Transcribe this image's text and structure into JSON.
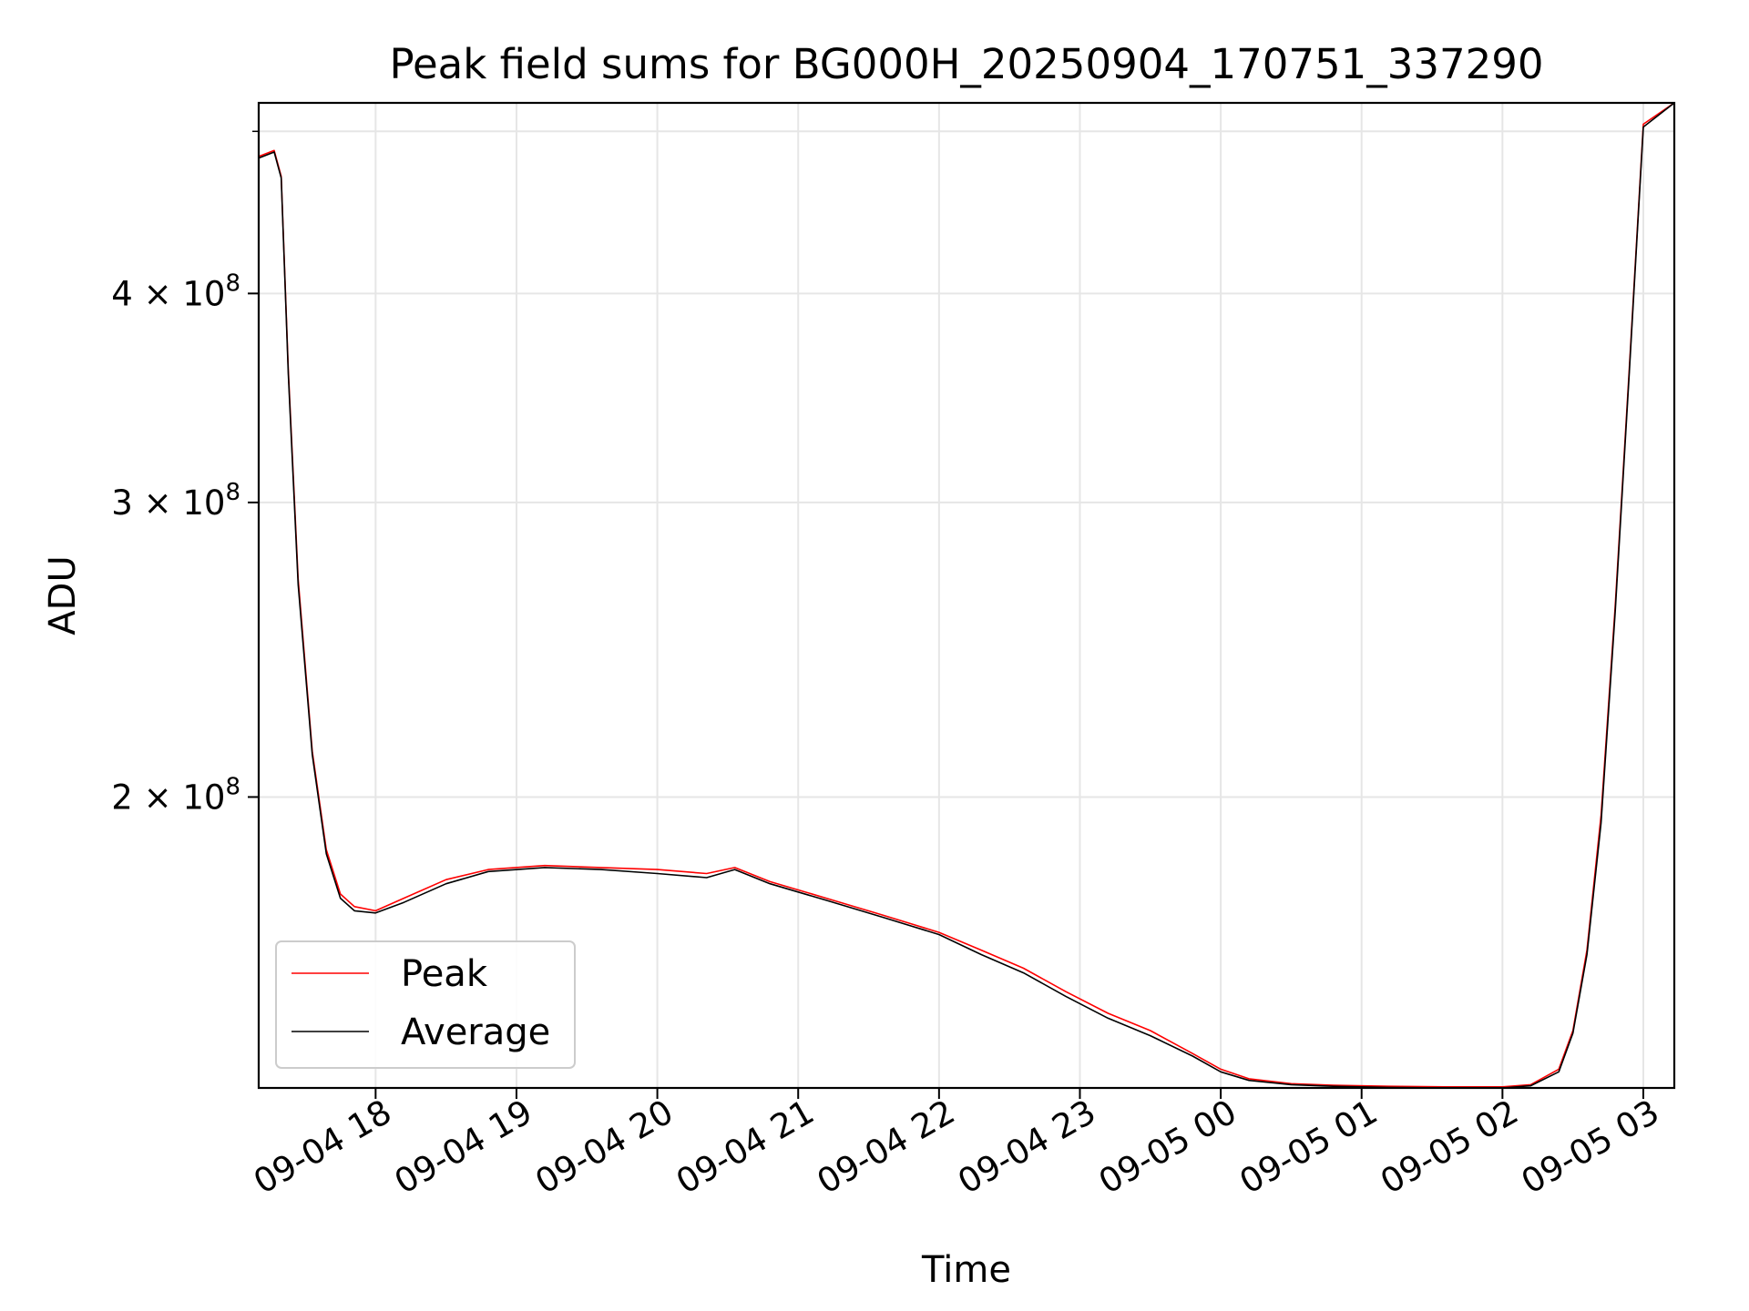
{
  "chart_data": {
    "type": "line",
    "title": "Peak field sums for BG000H_20250904_170751_337290",
    "xlabel": "Time",
    "ylabel": "ADU",
    "yscale": "log",
    "grid": true,
    "legend_position": "lower-left",
    "xlim_hours": [
      17.17,
      27.22
    ],
    "ylim": [
      134000000,
      520000000
    ],
    "x_ticks": [
      {
        "hour": 18,
        "label": "09-04 18"
      },
      {
        "hour": 19,
        "label": "09-04 19"
      },
      {
        "hour": 20,
        "label": "09-04 20"
      },
      {
        "hour": 21,
        "label": "09-04 21"
      },
      {
        "hour": 22,
        "label": "09-04 22"
      },
      {
        "hour": 23,
        "label": "09-04 23"
      },
      {
        "hour": 24,
        "label": "09-05 00"
      },
      {
        "hour": 25,
        "label": "09-05 01"
      },
      {
        "hour": 26,
        "label": "09-05 02"
      },
      {
        "hour": 27,
        "label": "09-05 03"
      }
    ],
    "y_ticks": [
      {
        "value": 200000000,
        "mantissa": "2",
        "exponent": "8"
      },
      {
        "value": 300000000,
        "mantissa": "3",
        "exponent": "8"
      },
      {
        "value": 400000000,
        "mantissa": "4",
        "exponent": "8"
      }
    ],
    "y_minor_ticks": [
      500000000
    ],
    "series": [
      {
        "name": "Peak",
        "color": "#ff0000",
        "x_hours": [
          17.17,
          17.28,
          17.33,
          17.38,
          17.45,
          17.55,
          17.65,
          17.75,
          17.85,
          18.0,
          18.2,
          18.5,
          18.8,
          19.2,
          19.6,
          20.0,
          20.35,
          20.55,
          20.8,
          21.2,
          21.6,
          22.0,
          22.3,
          22.6,
          22.9,
          23.2,
          23.5,
          23.8,
          24.0,
          24.2,
          24.5,
          24.8,
          25.2,
          25.6,
          26.0,
          26.2,
          26.4,
          26.5,
          26.6,
          26.7,
          26.8,
          26.9,
          27.0,
          27.22
        ],
        "values": [
          483000000,
          487000000,
          470000000,
          360000000,
          270000000,
          213000000,
          186000000,
          175000000,
          172000000,
          171000000,
          174000000,
          178500000,
          181000000,
          182000000,
          181500000,
          181000000,
          180000000,
          181500000,
          178000000,
          174000000,
          170000000,
          166000000,
          162000000,
          158000000,
          153000000,
          148500000,
          145000000,
          140500000,
          137500000,
          135700000,
          134800000,
          134500000,
          134300000,
          134200000,
          134200000,
          134600000,
          137500000,
          145000000,
          162000000,
          195000000,
          260000000,
          360000000,
          505000000,
          520000000
        ]
      },
      {
        "name": "Average",
        "color": "#000000",
        "x_hours": [
          17.17,
          17.28,
          17.33,
          17.38,
          17.45,
          17.55,
          17.65,
          17.75,
          17.85,
          18.0,
          18.2,
          18.5,
          18.8,
          19.2,
          19.6,
          20.0,
          20.35,
          20.55,
          20.8,
          21.2,
          21.6,
          22.0,
          22.3,
          22.6,
          22.9,
          23.2,
          23.5,
          23.8,
          24.0,
          24.2,
          24.5,
          24.8,
          25.2,
          25.6,
          26.0,
          26.2,
          26.4,
          26.5,
          26.6,
          26.7,
          26.8,
          26.9,
          27.0,
          27.22
        ],
        "values": [
          482000000,
          486000000,
          469000000,
          358000000,
          268000000,
          212000000,
          185000000,
          174000000,
          171000000,
          170500000,
          173000000,
          177500000,
          180500000,
          181500000,
          181000000,
          180000000,
          179000000,
          181000000,
          177500000,
          173500000,
          169500000,
          165500000,
          161000000,
          157000000,
          152000000,
          147500000,
          144000000,
          140000000,
          137000000,
          135400000,
          134600000,
          134300000,
          134100000,
          134000000,
          134000000,
          134400000,
          137000000,
          144500000,
          161000000,
          193000000,
          258000000,
          358000000,
          503000000,
          520000000
        ]
      }
    ]
  }
}
